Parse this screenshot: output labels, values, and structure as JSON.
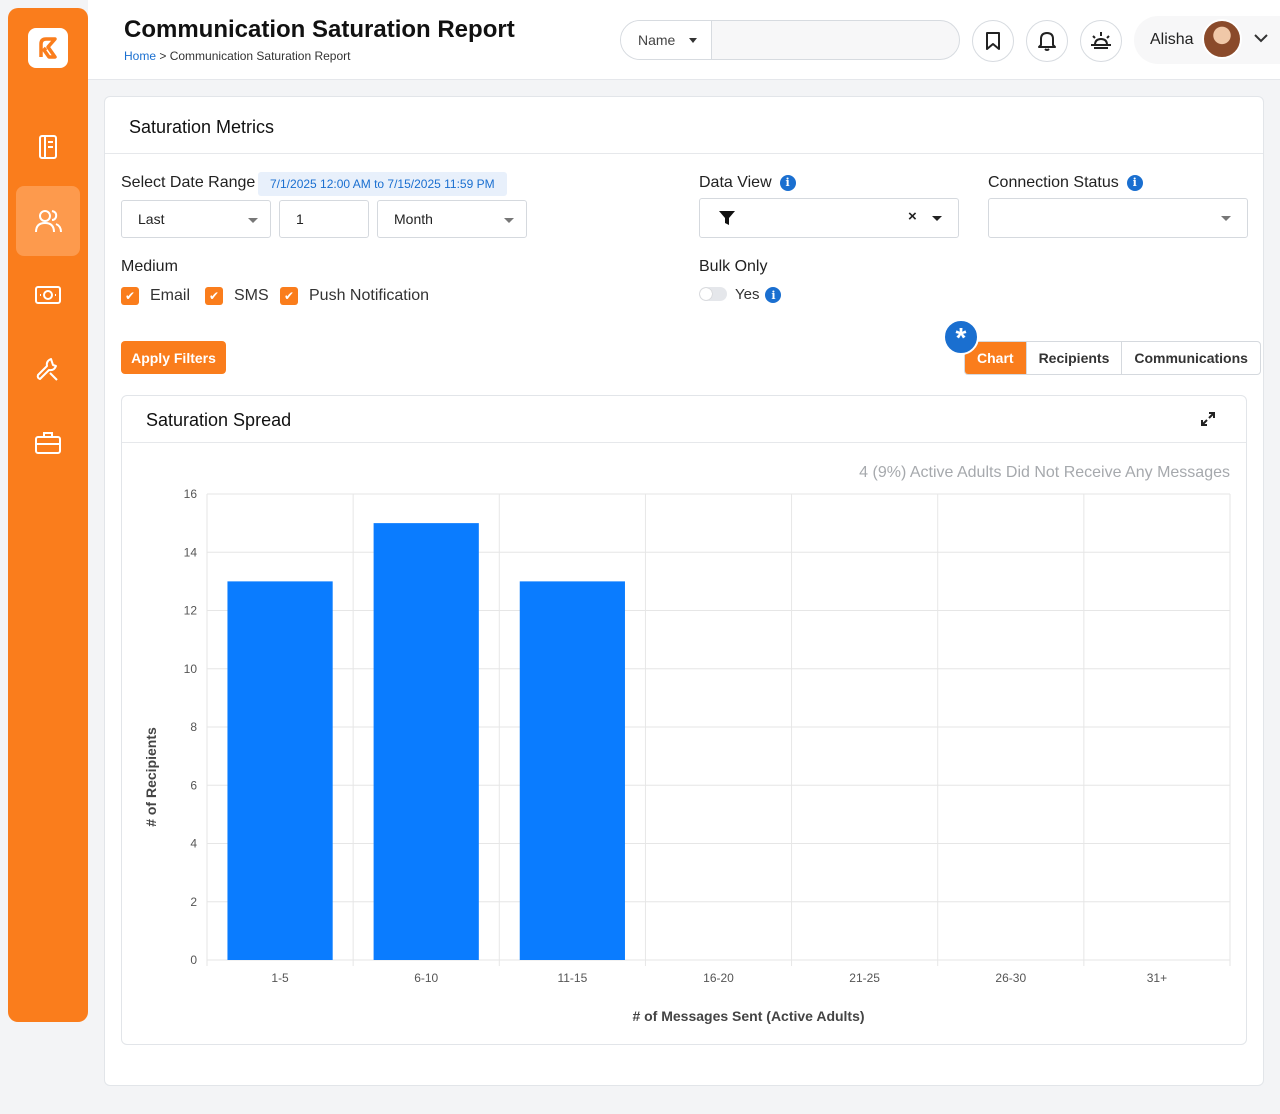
{
  "header": {
    "title": "Communication Saturation Report",
    "breadcrumb_home": "Home",
    "breadcrumb_sep": ">",
    "breadcrumb_current": "Communication Saturation Report",
    "search_type": "Name",
    "search_value": "",
    "user_name": "Alisha"
  },
  "icons": {
    "sidebar": [
      "notebook-icon",
      "users-icon",
      "money-icon",
      "wrench-icon",
      "briefcase-icon"
    ],
    "header": [
      "bookmark-icon",
      "bell-icon",
      "sunrise-icon"
    ]
  },
  "colors": {
    "brand": "#fa7d1c",
    "accent": "#1a6fd0",
    "bar": "#0a7cff"
  },
  "metrics": {
    "title": "Saturation Metrics",
    "date_range_label": "Select Date Range",
    "date_range_value": "7/1/2025 12:00 AM to 7/15/2025 11:59 PM",
    "range_mode": "Last",
    "range_count": "1",
    "range_unit": "Month",
    "data_view_label": "Data View",
    "connection_status_label": "Connection Status",
    "connection_status_value": "",
    "medium_label": "Medium",
    "medium_options": [
      {
        "label": "Email",
        "checked": true
      },
      {
        "label": "SMS",
        "checked": true
      },
      {
        "label": "Push Notification",
        "checked": true
      }
    ],
    "bulk_only_label": "Bulk Only",
    "bulk_only_option": "Yes",
    "bulk_only_on": false,
    "apply_label": "Apply Filters",
    "views": [
      "Chart",
      "Recipients",
      "Communications"
    ],
    "active_view": "Chart"
  },
  "chart_section": {
    "title": "Saturation Spread",
    "note": "4 (9%) Active Adults Did Not Receive Any Messages"
  },
  "chart_data": {
    "type": "bar",
    "categories": [
      "1-5",
      "6-10",
      "11-15",
      "16-20",
      "21-25",
      "26-30",
      "31+"
    ],
    "values": [
      13,
      15,
      13,
      0,
      0,
      0,
      0
    ],
    "xlabel": "# of Messages Sent (Active Adults)",
    "ylabel": "# of Recipients",
    "ylim": [
      0,
      16
    ],
    "yticks": [
      0,
      2,
      4,
      6,
      8,
      10,
      12,
      14,
      16
    ],
    "grid": true
  }
}
